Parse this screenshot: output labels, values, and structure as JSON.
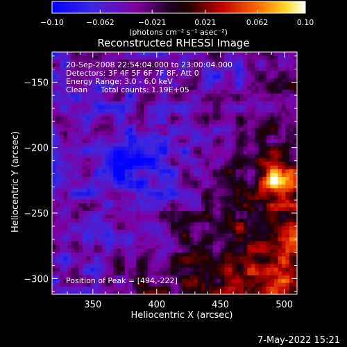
{
  "chart_data": {
    "type": "heatmap",
    "title": "Reconstructed RHESSI Image",
    "xlabel": "Heliocentric X (arcsec)",
    "ylabel": "Heliocentric Y (arcsec)",
    "xlim": [
      318,
      510
    ],
    "ylim": [
      -312,
      -127
    ],
    "x_ticks": [
      350,
      400,
      450,
      500
    ],
    "x_tick_labels": [
      "350",
      "400",
      "450",
      "500"
    ],
    "y_ticks": [
      -150,
      -200,
      -250,
      -300
    ],
    "y_tick_labels": [
      "−150",
      "−200",
      "−250",
      "−300"
    ],
    "colorbar": {
      "range": [
        -0.1,
        0.1
      ],
      "ticks": [
        -0.1,
        -0.062,
        -0.021,
        0.021,
        0.062,
        0.1
      ],
      "tick_labels": [
        "−0.10",
        "−0.062",
        "−0.021",
        "0.021",
        "0.062",
        "0.10"
      ],
      "unit_label": "(photons cm⁻² s⁻¹ asec⁻²)",
      "colors": [
        "#0000ff",
        "#5b30c8",
        "#8000a0",
        "#000000",
        "#a00000",
        "#ff6000",
        "#ffff60",
        "#ffffff"
      ]
    },
    "annotations": {
      "time_range": "20-Sep-2008 22:54:04.000 to 23:00:04.000",
      "detectors": "Detectors: 3F 4F 5F 6F 7F 8F, Att 0",
      "energy": "Energy Range: 3.0 - 6.0 keV",
      "method": "Clean",
      "counts": "Total counts: 1.19E+05",
      "peak": "Position of Peak = [494,-222]"
    },
    "peak": {
      "x": 494,
      "y": -222,
      "value": 0.1
    }
  },
  "footer": {
    "timestamp": "7-May-2022 15:21"
  }
}
